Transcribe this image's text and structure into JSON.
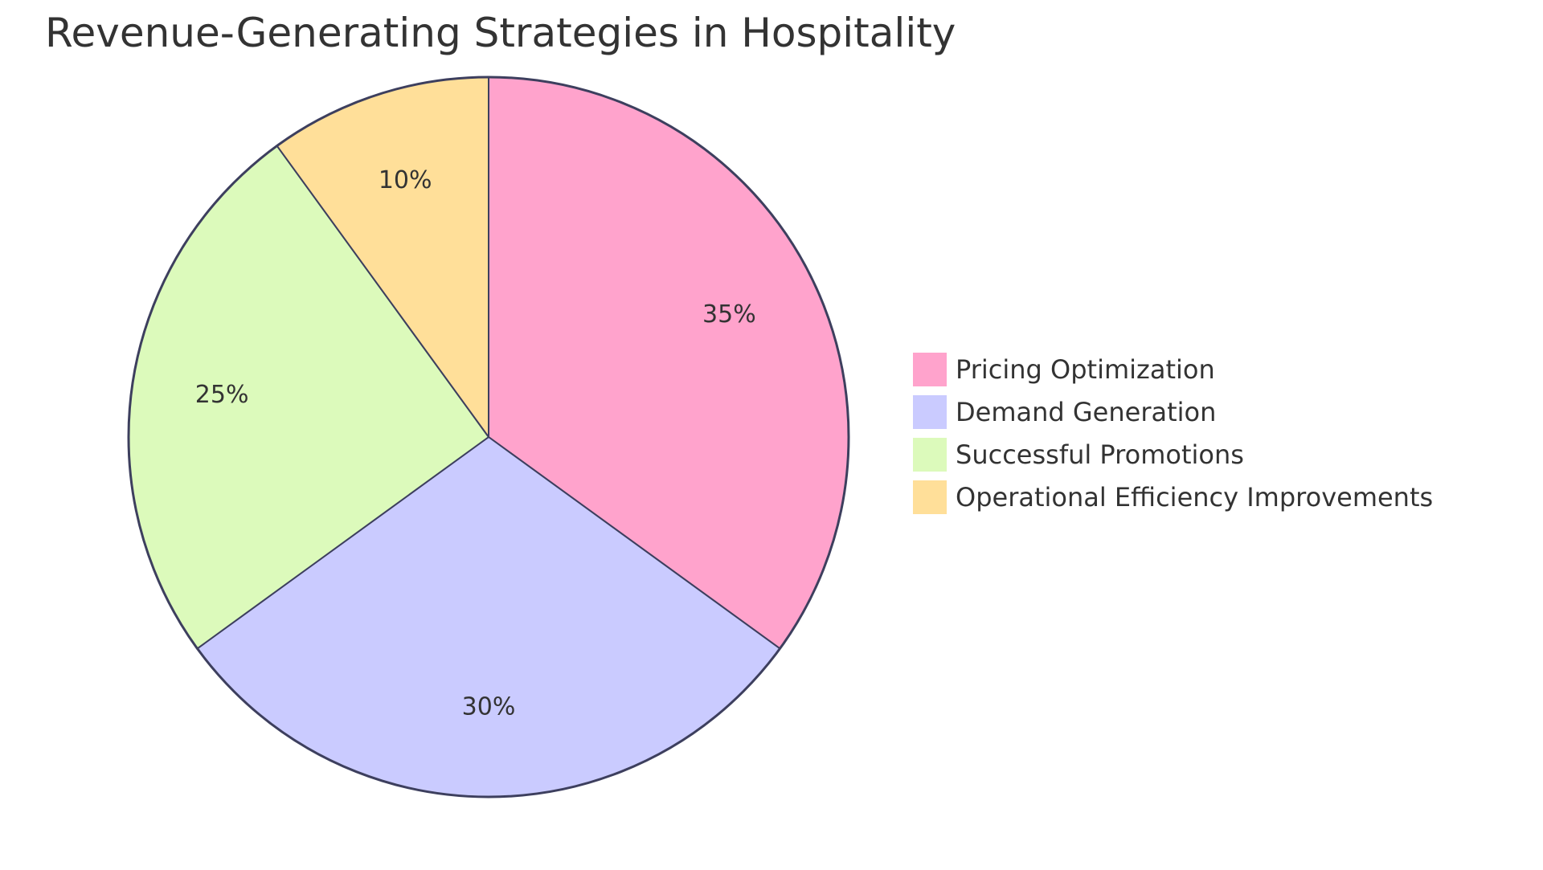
{
  "chart_data": {
    "type": "pie",
    "title": "Revenue-Generating Strategies in Hospitality",
    "slices": [
      {
        "label": "Pricing Optimization",
        "value": 35,
        "display": "35%",
        "color": "#FFA3CC"
      },
      {
        "label": "Demand Generation",
        "value": 30,
        "display": "30%",
        "color": "#CACBFF"
      },
      {
        "label": "Successful Promotions",
        "value": 25,
        "display": "25%",
        "color": "#DCFABB"
      },
      {
        "label": "Operational Efficiency Improvements",
        "value": 10,
        "display": "10%",
        "color": "#FFDF99"
      }
    ],
    "start_angle": "12 o'clock",
    "direction": "clockwise",
    "stroke_color": "#3D3F5E",
    "legend_position": "right"
  }
}
